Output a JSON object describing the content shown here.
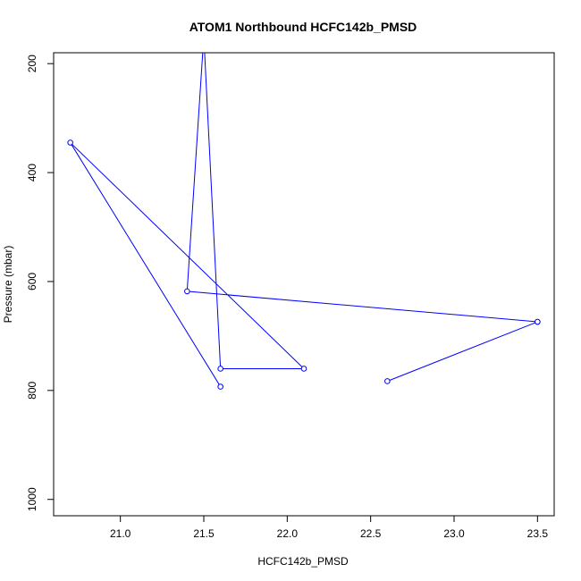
{
  "chart_data": {
    "type": "line",
    "title": "ATOM1 Northbound HCFC142b_PMSD",
    "xlabel": "HCFC142b_PMSD",
    "ylabel": "Pressure (mbar)",
    "xlim": [
      20.6,
      23.6
    ],
    "ylim": [
      1030,
      180
    ],
    "y_reversed": true,
    "x_ticks": [
      21.0,
      21.5,
      22.0,
      22.5,
      23.0,
      23.5
    ],
    "x_tick_labels": [
      "21.0",
      "21.5",
      "22.0",
      "22.5",
      "23.0",
      "23.5"
    ],
    "y_ticks": [
      200,
      400,
      600,
      800,
      1000
    ],
    "y_tick_labels": [
      "200",
      "400",
      "600",
      "800",
      "1000"
    ],
    "grid": false,
    "series": [
      {
        "color": "#0000ff",
        "marker": "open-circle",
        "points": [
          {
            "x": 23.5,
            "y": 674,
            "marker": true
          },
          {
            "x": 21.4,
            "y": 618,
            "marker": true
          },
          {
            "x": 21.5,
            "y": 150,
            "marker": false
          },
          {
            "x": 21.6,
            "y": 760,
            "marker": true
          },
          {
            "x": 22.1,
            "y": 760,
            "marker": true
          },
          {
            "x": 20.7,
            "y": 345,
            "marker": true
          },
          {
            "x": 21.6,
            "y": 793,
            "marker": true
          }
        ]
      },
      {
        "color": "#0000ff",
        "marker": "open-circle",
        "points": [
          {
            "x": 23.5,
            "y": 674,
            "marker": true
          },
          {
            "x": 22.6,
            "y": 783,
            "marker": true
          }
        ]
      }
    ]
  }
}
